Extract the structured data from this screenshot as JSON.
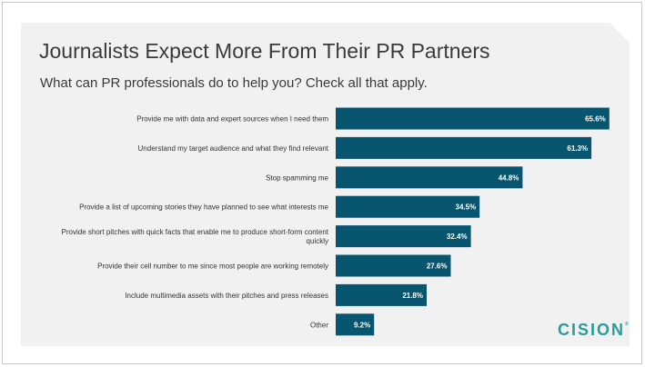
{
  "chart_data": {
    "type": "bar",
    "orientation": "horizontal",
    "title": "Journalists Expect More From Their PR Partners",
    "subtitle": "What can PR professionals do to help you? Check all that apply.",
    "categories": [
      [
        "Provide me with data and expert sources when I need them"
      ],
      [
        "Understand my target audience and what they find relevant"
      ],
      [
        "Stop spamming me"
      ],
      [
        "Provide a list of upcoming stories they have planned to see what interests me"
      ],
      [
        "Provide short pitches with quick facts that enable me to produce short-form content",
        "quickly"
      ],
      [
        "Provide their cell number to me since most people are working remotely"
      ],
      [
        "Include multimedia assets with their pitches and press releases"
      ],
      [
        "Other"
      ]
    ],
    "values": [
      65.6,
      61.3,
      44.8,
      34.5,
      32.4,
      27.6,
      21.8,
      9.2
    ],
    "value_labels": [
      "65.6%",
      "61.3%",
      "44.8%",
      "34.5%",
      "32.4%",
      "27.6%",
      "21.8%",
      "9.2%"
    ],
    "xlim": [
      0,
      70
    ],
    "grid": false,
    "bar_color": "#08556f"
  },
  "logo": {
    "text": "CISION",
    "mark": "®"
  }
}
